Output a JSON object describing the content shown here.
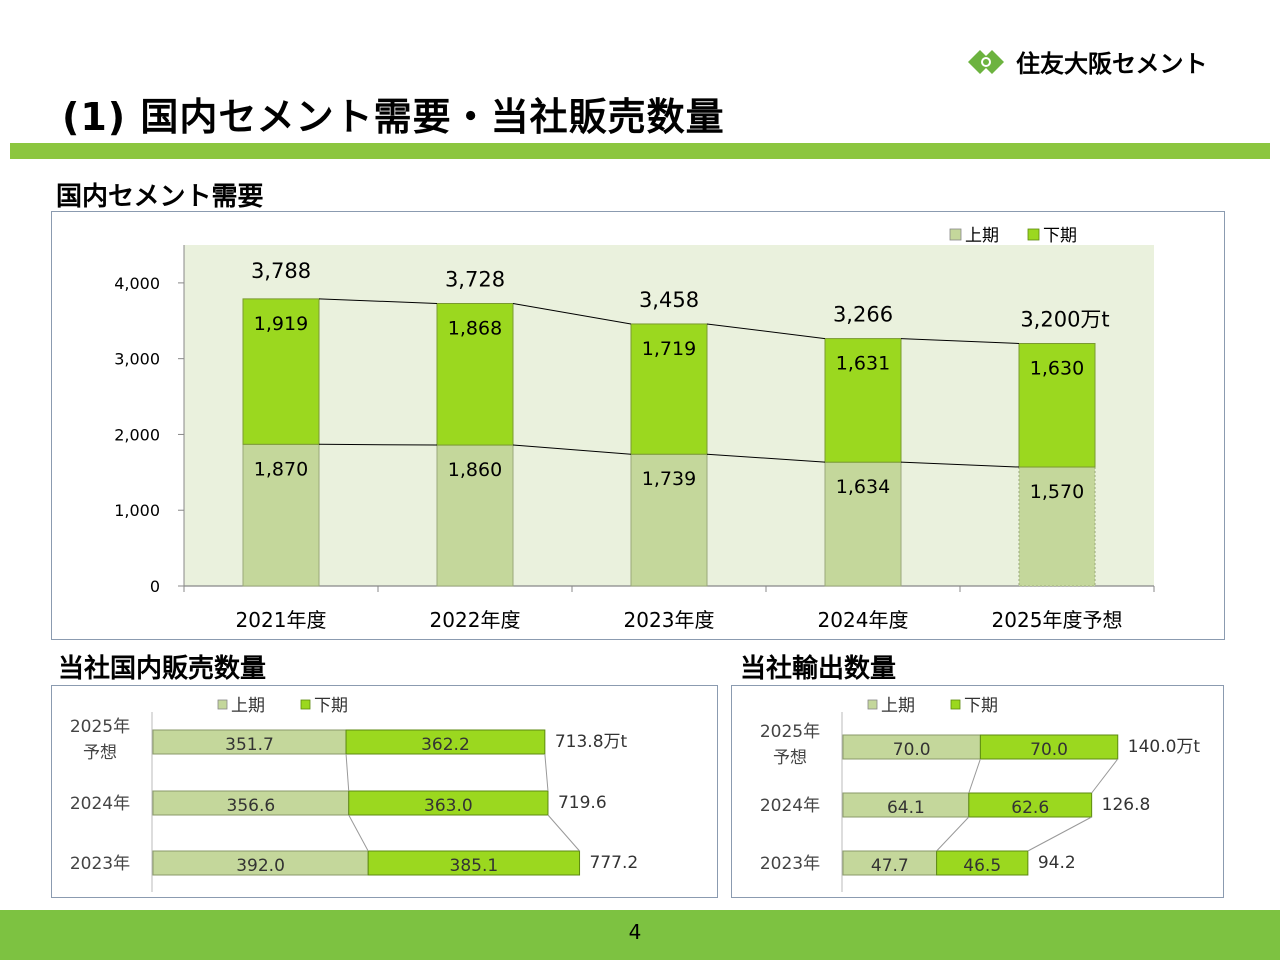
{
  "slide": {
    "title": "(1) 国内セメント需要・当社販売数量",
    "company": "住友大阪セメント",
    "page_number": "4",
    "colors": {
      "accent_green": "#8cc63f",
      "first_half": "#c4d79b",
      "second_half": "#9bd81f"
    }
  },
  "sections": {
    "domestic_demand": "国内セメント需要",
    "domestic_sales": "当社国内販売数量",
    "exports": "当社輸出数量"
  },
  "chart_data": [
    {
      "type": "bar",
      "stacked": true,
      "title": "国内セメント需要",
      "categories": [
        "2021年度",
        "2022年度",
        "2023年度",
        "2024年度",
        "2025年度予想"
      ],
      "series": [
        {
          "name": "上期",
          "values": [
            1870,
            1860,
            1739,
            1634,
            1570
          ],
          "labels": [
            "1,870",
            "1,860",
            "1,739",
            "1,634",
            "1,570"
          ]
        },
        {
          "name": "下期",
          "values": [
            1919,
            1868,
            1719,
            1631,
            1630
          ],
          "labels": [
            "1,919",
            "1,868",
            "1,719",
            "1,631",
            "1,630"
          ]
        }
      ],
      "totals": [
        "3,788",
        "3,728",
        "3,458",
        "3,266",
        "3,200万t"
      ],
      "ylim": [
        0,
        4500
      ],
      "yticks": [
        0,
        1000,
        2000,
        3000,
        4000
      ],
      "ytick_labels": [
        "0",
        "1,000",
        "2,000",
        "3,000",
        "4,000"
      ],
      "legend_position": "top-right"
    },
    {
      "type": "bar",
      "orientation": "horizontal",
      "stacked": true,
      "title": "当社国内販売数量",
      "categories": [
        [
          "2025年",
          "予想"
        ],
        [
          "2024年"
        ],
        [
          "2023年"
        ]
      ],
      "series": [
        {
          "name": "上期",
          "values": [
            351.7,
            356.6,
            392.0
          ],
          "labels": [
            "351.7",
            "356.6",
            "392.0"
          ]
        },
        {
          "name": "下期",
          "values": [
            362.2,
            363.0,
            385.1
          ],
          "labels": [
            "362.2",
            "363.0",
            "385.1"
          ]
        }
      ],
      "totals": [
        "713.8万t",
        "719.6",
        "777.2"
      ],
      "xlim": [
        0,
        900
      ],
      "legend_position": "top"
    },
    {
      "type": "bar",
      "orientation": "horizontal",
      "stacked": true,
      "title": "当社輸出数量",
      "categories": [
        [
          "2025年",
          "予想"
        ],
        [
          "2024年"
        ],
        [
          "2023年"
        ]
      ],
      "series": [
        {
          "name": "上期",
          "values": [
            70.0,
            64.1,
            47.7
          ],
          "labels": [
            "70.0",
            "64.1",
            "47.7"
          ]
        },
        {
          "name": "下期",
          "values": [
            70.0,
            62.6,
            46.5
          ],
          "labels": [
            "70.0",
            "62.6",
            "46.5"
          ]
        }
      ],
      "totals": [
        "140.0万t",
        "126.8",
        "94.2"
      ],
      "xlim": [
        0,
        160
      ],
      "legend_position": "top"
    }
  ]
}
